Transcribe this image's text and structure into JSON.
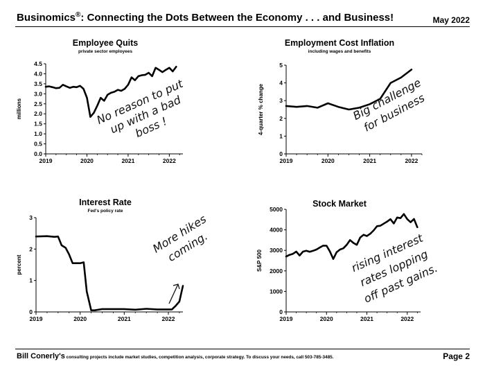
{
  "header": {
    "title": "Businomics",
    "reg": "®",
    "title_rest": ": Connecting the Dots Between the Economy . . . and Business!",
    "date": "May 2022"
  },
  "footer": {
    "name": "Bill Conerly's",
    "text": " consulting projects include market studies, competition analysis, corporate strategy.  To discuss your needs, call 503-785-3485.",
    "page": "Page 2"
  },
  "chart_data": [
    {
      "type": "line",
      "title": "Employee Quits",
      "subtitle": "private sector employees",
      "ylabel": "millions",
      "ylim": [
        0,
        4.5
      ],
      "yticks": [
        "0.0",
        "0.5",
        "1.0",
        "1.5",
        "2.0",
        "2.5",
        "3.0",
        "3.5",
        "4.0",
        "4.5"
      ],
      "xlim": [
        2019,
        2022.33
      ],
      "xticks": [
        "2019",
        "2020",
        "2021",
        "2022"
      ],
      "x": [
        2019.0,
        2019.083,
        2019.167,
        2019.25,
        2019.333,
        2019.417,
        2019.5,
        2019.583,
        2019.667,
        2019.75,
        2019.833,
        2019.917,
        2020.0,
        2020.083,
        2020.167,
        2020.25,
        2020.333,
        2020.417,
        2020.5,
        2020.583,
        2020.667,
        2020.75,
        2020.833,
        2020.917,
        2021.0,
        2021.083,
        2021.167,
        2021.25,
        2021.333,
        2021.417,
        2021.5,
        2021.583,
        2021.667,
        2021.75,
        2021.833,
        2021.917,
        2022.0,
        2022.083,
        2022.167
      ],
      "y": [
        3.35,
        3.37,
        3.33,
        3.28,
        3.3,
        3.45,
        3.37,
        3.3,
        3.35,
        3.33,
        3.4,
        3.25,
        2.8,
        1.85,
        2.05,
        2.4,
        2.8,
        2.65,
        2.95,
        3.05,
        3.1,
        3.2,
        3.15,
        3.25,
        3.45,
        3.82,
        3.68,
        3.88,
        3.93,
        3.95,
        4.05,
        3.88,
        4.3,
        4.2,
        4.08,
        4.2,
        4.3,
        4.12,
        4.35
      ],
      "annotation": [
        "No reason to put",
        "up with a bad",
        "boss !"
      ]
    },
    {
      "type": "line",
      "title": "Employment Cost Inflation",
      "subtitle": "including wages and benefits",
      "ylabel": "4-quarter % change",
      "ylim": [
        0,
        5
      ],
      "yticks": [
        "0",
        "1",
        "2",
        "3",
        "4",
        "5"
      ],
      "xlim": [
        2019,
        2022.25
      ],
      "xticks": [
        "2019",
        "2020",
        "2021",
        "2022"
      ],
      "x": [
        2019.0,
        2019.25,
        2019.5,
        2019.75,
        2020.0,
        2020.25,
        2020.5,
        2020.75,
        2021.0,
        2021.25,
        2021.5,
        2021.75,
        2022.0
      ],
      "y": [
        2.7,
        2.65,
        2.7,
        2.6,
        2.85,
        2.65,
        2.5,
        2.6,
        2.8,
        3.1,
        4.0,
        4.3,
        4.75
      ],
      "annotation": [
        "Big challenge",
        "for business"
      ]
    },
    {
      "type": "line",
      "title": "Interest Rate",
      "subtitle": "Fed's policy rate",
      "ylabel": "percent",
      "ylim": [
        0,
        3
      ],
      "yticks": [
        "0",
        "1",
        "2",
        "3"
      ],
      "xlim": [
        2019,
        2022.33
      ],
      "xticks": [
        "2019",
        "2020",
        "2021",
        "2022"
      ],
      "x": [
        2019.0,
        2019.25,
        2019.42,
        2019.5,
        2019.58,
        2019.67,
        2019.75,
        2019.83,
        2020.0,
        2020.08,
        2020.15,
        2020.25,
        2020.33,
        2020.5,
        2020.75,
        2021.0,
        2021.25,
        2021.5,
        2021.75,
        2022.0,
        2022.08,
        2022.17,
        2022.25,
        2022.33
      ],
      "y": [
        2.4,
        2.41,
        2.39,
        2.4,
        2.12,
        2.04,
        1.83,
        1.55,
        1.55,
        1.58,
        0.65,
        0.05,
        0.05,
        0.09,
        0.09,
        0.09,
        0.07,
        0.1,
        0.08,
        0.08,
        0.08,
        0.2,
        0.33,
        0.83
      ],
      "annotation": [
        "More hikes",
        "coming."
      ]
    },
    {
      "type": "line",
      "title": "Stock Market",
      "ylabel": "S&P 500",
      "ylim": [
        0,
        5000
      ],
      "yticks": [
        "0",
        "1000",
        "2000",
        "3000",
        "4000",
        "5000"
      ],
      "xlim": [
        2019,
        2022.33
      ],
      "xticks": [
        "2019",
        "2020",
        "2021",
        "2022"
      ],
      "x": [
        2019.0,
        2019.083,
        2019.167,
        2019.25,
        2019.333,
        2019.417,
        2019.5,
        2019.583,
        2019.667,
        2019.75,
        2019.833,
        2019.917,
        2020.0,
        2020.083,
        2020.167,
        2020.25,
        2020.333,
        2020.417,
        2020.5,
        2020.583,
        2020.667,
        2020.75,
        2020.833,
        2020.917,
        2021.0,
        2021.083,
        2021.167,
        2021.25,
        2021.333,
        2021.417,
        2021.5,
        2021.583,
        2021.667,
        2021.75,
        2021.833,
        2021.917,
        2022.0,
        2022.083,
        2022.167,
        2022.25
      ],
      "y": [
        2700,
        2780,
        2830,
        2940,
        2750,
        2940,
        2980,
        2930,
        2980,
        3040,
        3140,
        3230,
        3225,
        2950,
        2580,
        2910,
        3040,
        3100,
        3270,
        3500,
        3360,
        3270,
        3620,
        3760,
        3700,
        3810,
        3970,
        4180,
        4200,
        4300,
        4400,
        4520,
        4310,
        4600,
        4570,
        4770,
        4520,
        4370,
        4530,
        4130
      ],
      "annotation": [
        "rising interest",
        "rates lopping",
        "off past gains."
      ]
    }
  ]
}
